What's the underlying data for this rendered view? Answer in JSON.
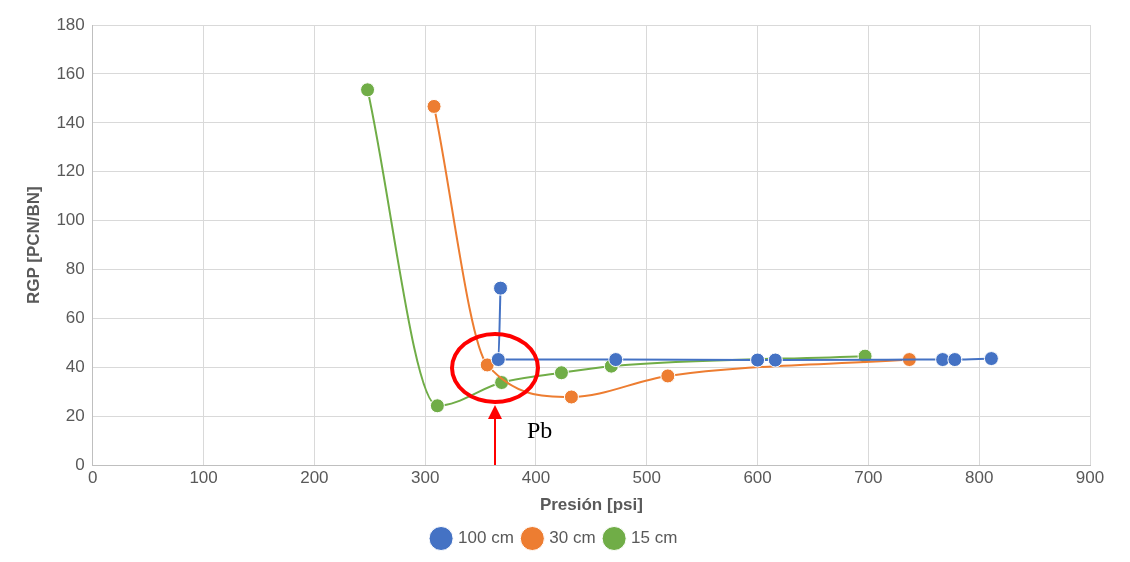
{
  "chart_data": {
    "type": "line",
    "xlabel": "Presión [psi]",
    "ylabel": "RGP [PCN/BN]",
    "xlim": [
      0,
      900
    ],
    "xticks": [
      0,
      100,
      200,
      300,
      400,
      500,
      600,
      700,
      800,
      900
    ],
    "ylim": [
      0,
      180
    ],
    "yticks": [
      0,
      20,
      40,
      60,
      80,
      100,
      120,
      140,
      160,
      180
    ],
    "grid": true,
    "legend": "bottom",
    "marker": "circle",
    "line_style": "solid",
    "series": [
      {
        "name": "100 cm",
        "color": "#4472c4",
        "x": [
          368,
          366,
          472,
          600,
          616,
          767,
          778,
          811
        ],
        "values": [
          72.4,
          43.2,
          43.2,
          43,
          43,
          43.2,
          43.2,
          43.6
        ]
      },
      {
        "name": "30 cm",
        "color": "#ed7d31",
        "x": [
          308,
          356,
          432,
          519,
          737
        ],
        "values": [
          146.7,
          41,
          27.9,
          36.5,
          43.2
        ]
      },
      {
        "name": "15 cm",
        "color": "#70ad47",
        "x": [
          248,
          311,
          369,
          423,
          468,
          697
        ],
        "values": [
          153.5,
          24.3,
          33.8,
          37.8,
          40.5,
          44.6
        ]
      }
    ],
    "ref_lines": [
      {
        "axis": "x",
        "value": 363,
        "label": "Pb",
        "color": "#ff0000"
      }
    ]
  }
}
